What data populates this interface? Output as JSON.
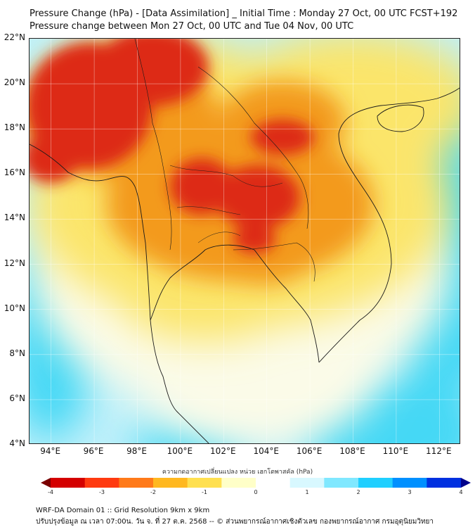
{
  "header": {
    "title_line1": "Pressure Change (hPa) - [Data Assimilation] _ Initial Time : Monday 27 Oct, 00 UTC FCST+192",
    "title_line2": "Pressure change between Mon 27 Oct, 00 UTC and Tue 04 Nov, 00 UTC"
  },
  "map": {
    "region": "Mainland Southeast Asia",
    "lat_range": [
      4,
      22
    ],
    "lon_range": [
      93,
      113
    ],
    "lat_labels": [
      "22°N",
      "20°N",
      "18°N",
      "16°N",
      "14°N",
      "12°N",
      "10°N",
      "8°N",
      "6°N",
      "4°N"
    ],
    "lon_labels": [
      "94°E",
      "96°E",
      "98°E",
      "100°E",
      "102°E",
      "104°E",
      "106°E",
      "108°E",
      "110°E",
      "112°E"
    ],
    "grid": true,
    "field_colors": {
      "strong_fall": "#dd2a14",
      "fall": "#f39a1c",
      "slight_fall": "#fbe56b",
      "near_zero": "#fbfbe8",
      "slight_rise": "#bff0fa",
      "rise": "#44d8f5"
    }
  },
  "colorbar": {
    "title": "ความกดอากาศเปลี่ยนแปลง หน่วย เฮกโตพาสคัล (hPa)",
    "min": -4,
    "max": 4,
    "ticks": [
      "-4",
      "-3",
      "-2",
      "-1",
      "0",
      "1",
      "2",
      "3",
      "4"
    ],
    "colors": [
      "#7a0000",
      "#d40000",
      "#ff3a10",
      "#ff7a1a",
      "#ffb820",
      "#ffe050",
      "#ffffc8",
      "#ffffff",
      "#d8f8ff",
      "#80e8ff",
      "#20cfff",
      "#0090ff",
      "#0030e0",
      "#00008a"
    ]
  },
  "footer": {
    "line1": "WRF-DA Domain 01 :: Grid Resolution 9km x 9km",
    "line2": "ปรับปรุงข้อมูล ณ เวลา 07:00น. วัน จ. ที่ 27 ต.ค. 2568 -- © ส่วนพยากรณ์อากาศเชิงตัวเลข กองพยากรณ์อากาศ กรมอุตุนิยมวิทยา"
  }
}
